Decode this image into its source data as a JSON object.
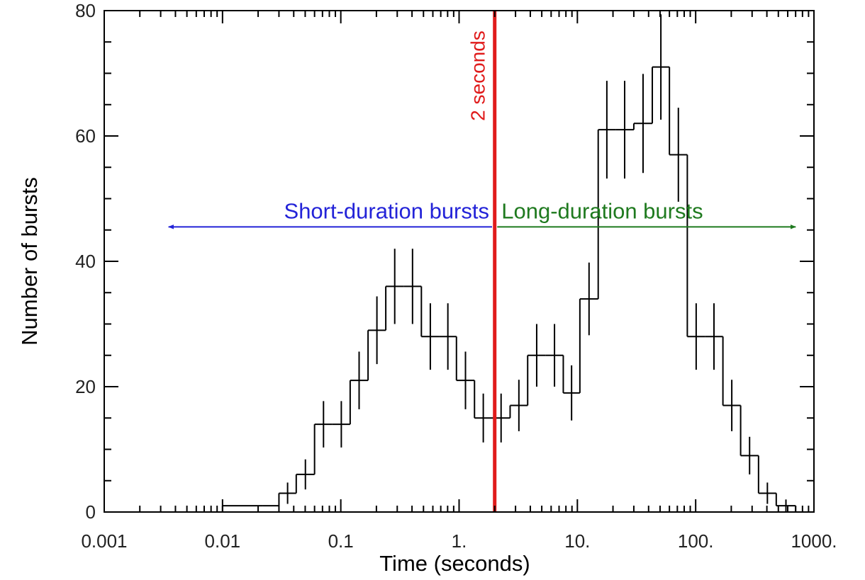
{
  "chart_data": {
    "type": "histogram",
    "xlabel": "Time (seconds)",
    "ylabel": "Number of bursts",
    "xscale": "log",
    "xlim": [
      0.001,
      1000
    ],
    "ylim": [
      0,
      80
    ],
    "grid": false,
    "x_tick_values": [
      0.001,
      0.01,
      0.1,
      1,
      10,
      100,
      1000
    ],
    "x_tick_labels": [
      "0.001",
      "0.01",
      "0.1",
      "1.",
      "10.",
      "100.",
      "1000."
    ],
    "y_tick_values": [
      0,
      20,
      40,
      60,
      80
    ],
    "y_tick_labels": [
      "0",
      "20",
      "40",
      "60",
      "80"
    ],
    "bins": [
      {
        "x0": 0.01,
        "x1": 0.022,
        "count": 1,
        "err": 0
      },
      {
        "x0": 0.022,
        "x1": 0.03,
        "count": 1,
        "err": 0
      },
      {
        "x0": 0.03,
        "x1": 0.042,
        "count": 3,
        "err": 1.7
      },
      {
        "x0": 0.042,
        "x1": 0.06,
        "count": 6,
        "err": 2.4
      },
      {
        "x0": 0.06,
        "x1": 0.085,
        "count": 14,
        "err": 3.7
      },
      {
        "x0": 0.085,
        "x1": 0.12,
        "count": 14,
        "err": 3.7
      },
      {
        "x0": 0.12,
        "x1": 0.17,
        "count": 21,
        "err": 4.6
      },
      {
        "x0": 0.17,
        "x1": 0.24,
        "count": 29,
        "err": 5.4
      },
      {
        "x0": 0.24,
        "x1": 0.34,
        "count": 36,
        "err": 6.0
      },
      {
        "x0": 0.34,
        "x1": 0.48,
        "count": 36,
        "err": 6.0
      },
      {
        "x0": 0.48,
        "x1": 0.68,
        "count": 28,
        "err": 5.3
      },
      {
        "x0": 0.68,
        "x1": 0.95,
        "count": 28,
        "err": 5.3
      },
      {
        "x0": 0.95,
        "x1": 1.35,
        "count": 21,
        "err": 4.6
      },
      {
        "x0": 1.35,
        "x1": 1.9,
        "count": 15,
        "err": 3.9
      },
      {
        "x0": 1.9,
        "x1": 2.7,
        "count": 15,
        "err": 3.9
      },
      {
        "x0": 2.7,
        "x1": 3.8,
        "count": 17,
        "err": 4.1
      },
      {
        "x0": 3.8,
        "x1": 5.4,
        "count": 25,
        "err": 5.0
      },
      {
        "x0": 5.4,
        "x1": 7.6,
        "count": 25,
        "err": 5.0
      },
      {
        "x0": 7.6,
        "x1": 10.5,
        "count": 19,
        "err": 4.4
      },
      {
        "x0": 10.5,
        "x1": 15,
        "count": 34,
        "err": 5.8
      },
      {
        "x0": 15,
        "x1": 21,
        "count": 61,
        "err": 7.8
      },
      {
        "x0": 21,
        "x1": 30,
        "count": 61,
        "err": 7.8
      },
      {
        "x0": 30,
        "x1": 43,
        "count": 62,
        "err": 7.9
      },
      {
        "x0": 43,
        "x1": 60,
        "count": 71,
        "err": 8.4
      },
      {
        "x0": 60,
        "x1": 85,
        "count": 57,
        "err": 7.5
      },
      {
        "x0": 85,
        "x1": 120,
        "count": 28,
        "err": 5.3
      },
      {
        "x0": 120,
        "x1": 170,
        "count": 28,
        "err": 5.3
      },
      {
        "x0": 170,
        "x1": 240,
        "count": 17,
        "err": 4.1
      },
      {
        "x0": 240,
        "x1": 340,
        "count": 9,
        "err": 3.0
      },
      {
        "x0": 340,
        "x1": 480,
        "count": 3,
        "err": 1.7
      },
      {
        "x0": 480,
        "x1": 700,
        "count": 1,
        "err": 1.0
      }
    ],
    "divider": {
      "x": 2,
      "label": "2 seconds",
      "color": "#e01b1b"
    },
    "annotations": [
      {
        "text": "Short-duration bursts",
        "color": "#2323d8",
        "arrow_direction": "left",
        "x_from": 1.9,
        "x_to": 0.0035,
        "y": 45.5
      },
      {
        "text": "Long-duration bursts",
        "color": "#1f7a1f",
        "arrow_direction": "right",
        "x_from": 2.1,
        "x_to": 700,
        "y": 45.5
      }
    ],
    "colors": {
      "axes": "#000000",
      "histogram": "#000000"
    }
  }
}
